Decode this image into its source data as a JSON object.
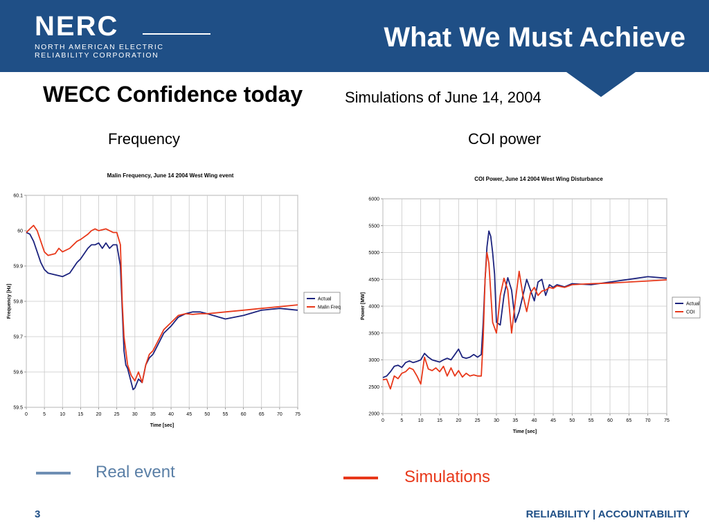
{
  "logo": {
    "word": "NERC",
    "line1": "NORTH AMERICAN ELECTRIC",
    "line2": "RELIABILITY CORPORATION"
  },
  "slide_title": "What We Must Achieve",
  "heading": "WECC Confidence today",
  "subheading": "Simulations of June 14, 2004",
  "panel_labels": {
    "left": "Frequency",
    "right": "COI power"
  },
  "legend_bottom": {
    "real": "Real event",
    "simulations": "Simulations"
  },
  "footer": {
    "page": "3",
    "text": "RELIABILITY | ACCOUNTABILITY"
  },
  "colors": {
    "banner": "#1f4f86",
    "actual": "#1c237e",
    "simulated": "#e8381a",
    "real_legend": "#6f8fb4"
  },
  "chart_data": [
    {
      "type": "line",
      "title": "Malin Frequency, June 14 2004 West Wing event",
      "xlabel": "Time [sec]",
      "ylabel": "Frequency [Hz]",
      "xlim": [
        0,
        75
      ],
      "ylim": [
        59.5,
        60.1
      ],
      "xticks": [
        "0",
        "5",
        "10",
        "15",
        "20",
        "25",
        "30",
        "35",
        "40",
        "45",
        "50",
        "55",
        "60",
        "65",
        "70",
        "75"
      ],
      "yticks": [
        "59.5",
        "59.6",
        "59.7",
        "59.8",
        "59.9",
        "60",
        "60.1"
      ],
      "grid": true,
      "legend_position": "right",
      "series": [
        {
          "name": "Actual",
          "color": "#1c237e",
          "x": [
            0,
            1,
            2,
            3,
            4,
            5,
            6,
            8,
            10,
            12,
            14,
            15,
            17,
            18,
            19,
            20,
            21,
            22,
            23,
            24,
            25,
            26,
            26.5,
            27,
            27.5,
            28,
            29,
            29.5,
            30,
            31,
            32,
            33,
            34,
            35,
            36,
            38,
            40,
            42,
            44,
            46,
            48,
            50,
            55,
            60,
            65,
            70,
            75
          ],
          "y": [
            59.995,
            59.99,
            59.97,
            59.94,
            59.91,
            59.89,
            59.88,
            59.875,
            59.87,
            59.88,
            59.91,
            59.92,
            59.95,
            59.96,
            59.96,
            59.965,
            59.95,
            59.965,
            59.95,
            59.96,
            59.96,
            59.9,
            59.78,
            59.66,
            59.62,
            59.61,
            59.57,
            59.55,
            59.555,
            59.58,
            59.57,
            59.62,
            59.64,
            59.65,
            59.67,
            59.71,
            59.73,
            59.755,
            59.765,
            59.77,
            59.77,
            59.765,
            59.75,
            59.76,
            59.775,
            59.78,
            59.775
          ]
        },
        {
          "name": "Malin Freq",
          "color": "#e8381a",
          "x": [
            0,
            1,
            2,
            3,
            4,
            5,
            6,
            8,
            9,
            10,
            12,
            14,
            15,
            17,
            18,
            19,
            20,
            22,
            24,
            25,
            26,
            26.5,
            27,
            27.5,
            28,
            29,
            30,
            31,
            32,
            33,
            34,
            35,
            36,
            38,
            40,
            42,
            44,
            46,
            48,
            50,
            55,
            60,
            65,
            70,
            75
          ],
          "y": [
            59.995,
            60.005,
            60.015,
            60.0,
            59.97,
            59.94,
            59.93,
            59.935,
            59.95,
            59.94,
            59.95,
            59.97,
            59.975,
            59.99,
            60.0,
            60.005,
            60.0,
            60.005,
            59.995,
            59.995,
            59.96,
            59.8,
            59.7,
            59.66,
            59.62,
            59.59,
            59.575,
            59.6,
            59.57,
            59.62,
            59.65,
            59.66,
            59.68,
            59.72,
            59.74,
            59.76,
            59.765,
            59.763,
            59.765,
            59.765,
            59.77,
            59.775,
            59.78,
            59.785,
            59.79
          ]
        }
      ]
    },
    {
      "type": "line",
      "title": "COI Power, June 14 2004 West Wing Disturbance",
      "xlabel": "Time [sec]",
      "ylabel": "Power [MW]",
      "xlim": [
        0,
        75
      ],
      "ylim": [
        2000,
        6000
      ],
      "xticks": [
        "0",
        "5",
        "10",
        "15",
        "20",
        "25",
        "30",
        "35",
        "40",
        "45",
        "50",
        "55",
        "60",
        "65",
        "70",
        "75"
      ],
      "yticks": [
        "2000",
        "2500",
        "3000",
        "3500",
        "4000",
        "4500",
        "5000",
        "5500",
        "6000"
      ],
      "grid": true,
      "legend_position": "right",
      "series": [
        {
          "name": "Actual",
          "color": "#1c237e",
          "x": [
            0,
            1,
            2,
            3,
            4,
            5,
            6,
            7,
            8,
            9,
            10,
            11,
            12,
            13,
            14,
            15,
            16,
            17,
            18,
            19,
            20,
            21,
            22,
            23,
            24,
            25,
            26,
            26.5,
            27,
            27.5,
            28,
            28.5,
            29,
            29.5,
            30,
            31,
            32,
            33,
            34,
            35,
            36,
            37,
            38,
            39,
            40,
            41,
            42,
            43,
            44,
            45,
            46,
            48,
            50,
            55,
            60,
            65,
            70,
            75
          ],
          "y": [
            2670,
            2700,
            2780,
            2880,
            2900,
            2860,
            2950,
            2980,
            2950,
            2970,
            3000,
            3120,
            3050,
            3000,
            2980,
            2960,
            3000,
            3030,
            3000,
            3100,
            3200,
            3050,
            3030,
            3050,
            3100,
            3050,
            3100,
            3700,
            4500,
            5100,
            5400,
            5300,
            5000,
            4600,
            3700,
            3650,
            4200,
            4530,
            4300,
            3700,
            3900,
            4200,
            4500,
            4300,
            4100,
            4450,
            4500,
            4200,
            4400,
            4350,
            4400,
            4360,
            4420,
            4400,
            4450,
            4500,
            4550,
            4520
          ]
        },
        {
          "name": "COI",
          "color": "#e8381a",
          "x": [
            0,
            1,
            2,
            3,
            4,
            5,
            6,
            7,
            8,
            9,
            10,
            11,
            12,
            13,
            14,
            15,
            16,
            17,
            18,
            19,
            20,
            21,
            22,
            23,
            24,
            25,
            26,
            26.5,
            27,
            27.5,
            28,
            29,
            30,
            31,
            32,
            33,
            34,
            35,
            36,
            37,
            38,
            39,
            40,
            41,
            42,
            43,
            44,
            45,
            46,
            48,
            50,
            55,
            60,
            65,
            70,
            75
          ],
          "y": [
            2630,
            2640,
            2460,
            2700,
            2650,
            2750,
            2780,
            2850,
            2820,
            2700,
            2550,
            3050,
            2830,
            2800,
            2850,
            2780,
            2880,
            2700,
            2850,
            2700,
            2800,
            2680,
            2750,
            2700,
            2720,
            2700,
            2700,
            3400,
            4500,
            5000,
            4800,
            3700,
            3500,
            4200,
            4520,
            4300,
            3500,
            4100,
            4650,
            4200,
            3900,
            4250,
            4350,
            4200,
            4280,
            4300,
            4350,
            4330,
            4380,
            4350,
            4400,
            4420,
            4430,
            4450,
            4470,
            4490
          ]
        }
      ]
    }
  ]
}
